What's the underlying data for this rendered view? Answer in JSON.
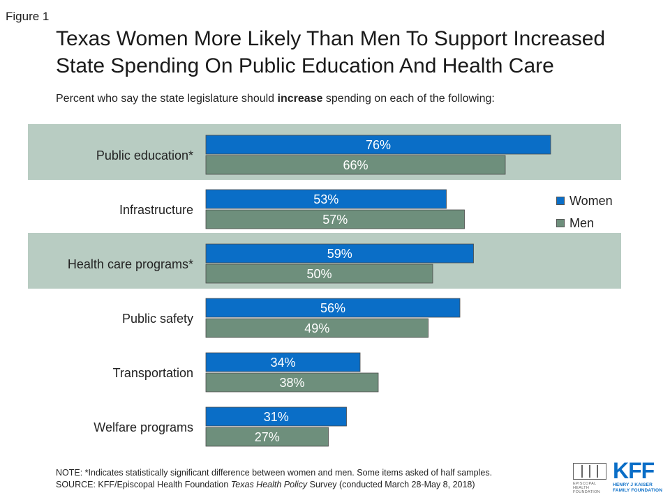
{
  "figure_label": "Figure 1",
  "chart_data": {
    "type": "bar",
    "orientation": "horizontal",
    "title": "Texas Women More Likely Than Men To Support Increased State Spending On Public Education And Health Care",
    "subtitle_pre": "Percent who say the state legislature should ",
    "subtitle_bold": "increase",
    "subtitle_post": " spending on each of the following:",
    "categories": [
      "Public education*",
      "Infrastructure",
      "Health care programs*",
      "Public safety",
      "Transportation",
      "Welfare programs"
    ],
    "highlighted": [
      true,
      false,
      true,
      false,
      false,
      false
    ],
    "series": [
      {
        "name": "Women",
        "color": "#0a6ec7",
        "values": [
          76,
          53,
          59,
          56,
          34,
          31
        ]
      },
      {
        "name": "Men",
        "color": "#6e8f7c",
        "values": [
          66,
          57,
          50,
          49,
          38,
          27
        ]
      }
    ],
    "data_label_suffix": "%",
    "xlim": [
      0,
      100
    ],
    "legend_position": "right",
    "highlight_color": "#b8ccc2"
  },
  "notes": {
    "note": "NOTE: *Indicates statistically significant difference between women and men. Some items asked of half samples.",
    "source_pre": "SOURCE: KFF/Episcopal Health Foundation ",
    "source_italic": "Texas Health Policy",
    "source_post": " Survey (conducted March 28-May 8, 2018)"
  },
  "logos": {
    "ehf_text_1": "EPISCOPAL HEALTH",
    "ehf_text_2": "FOUNDATION",
    "kff": "KFF",
    "kff_sub_1": "HENRY J KAISER",
    "kff_sub_2": "FAMILY FOUNDATION"
  }
}
